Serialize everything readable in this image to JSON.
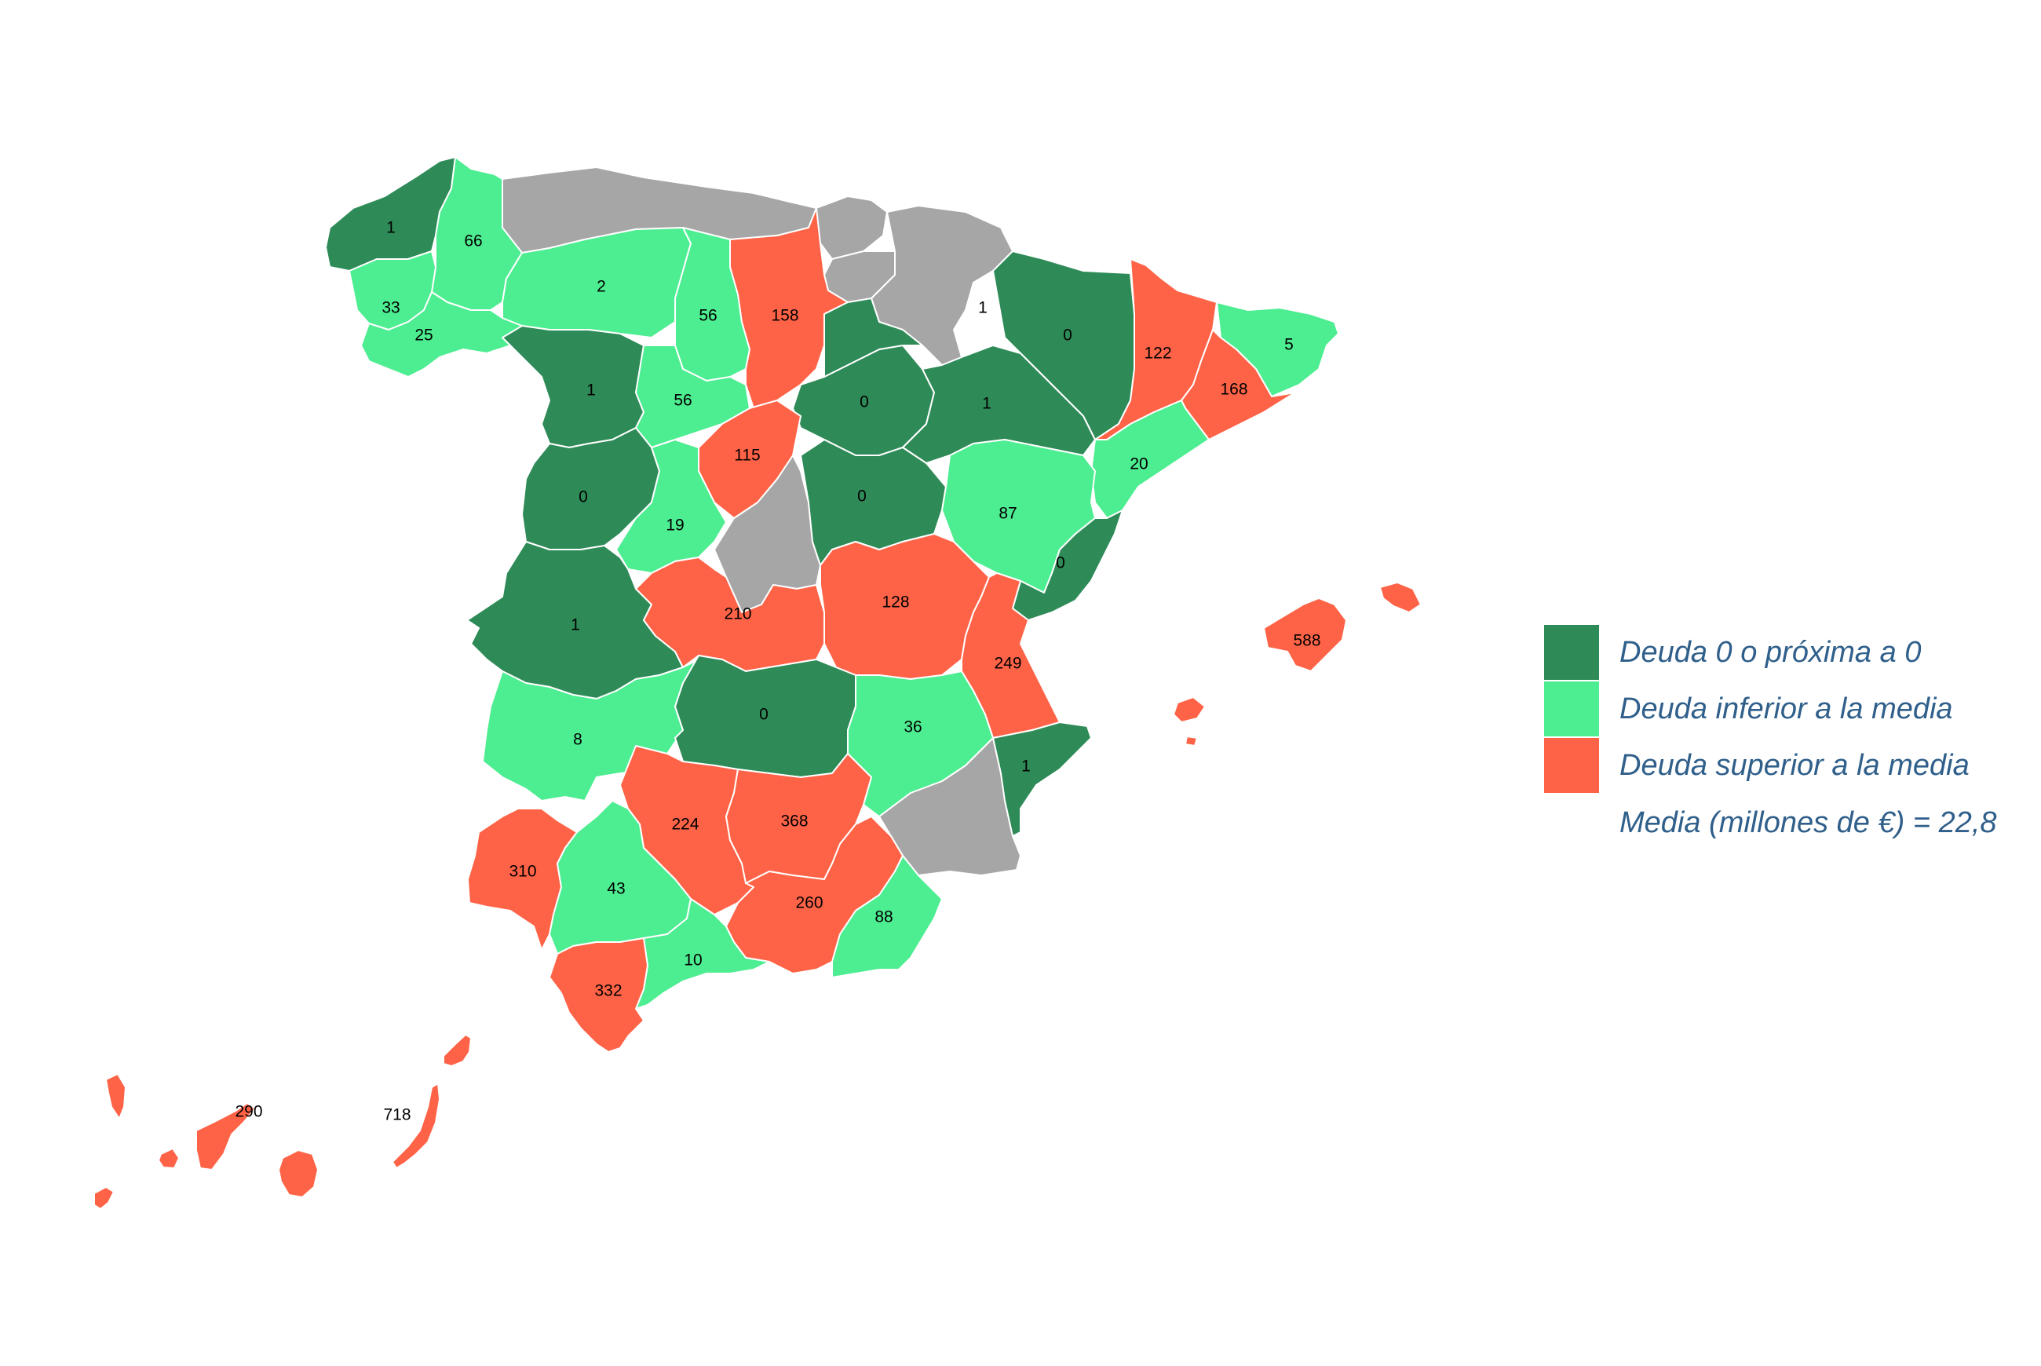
{
  "colors": {
    "zero": "#2e8b57",
    "below": "#4ded91",
    "above": "#ff6347",
    "nodata": "#a6a6a6",
    "legend_text": "#2f5f8a"
  },
  "legend": {
    "items": [
      {
        "category": "zero",
        "label": "Deuda 0 o próxima a 0"
      },
      {
        "category": "below",
        "label": "Deuda inferior a la media"
      },
      {
        "category": "above",
        "label": "Deuda superior a la media"
      }
    ],
    "note": "Media (millones de €) = 22,8"
  },
  "provinces": [
    {
      "id": "a-coruna",
      "value": "1",
      "category": "zero"
    },
    {
      "id": "lugo",
      "value": "66",
      "category": "below"
    },
    {
      "id": "pontevedra",
      "value": "33",
      "category": "below"
    },
    {
      "id": "ourense",
      "value": "25",
      "category": "below"
    },
    {
      "id": "leon",
      "value": "2",
      "category": "below"
    },
    {
      "id": "palencia",
      "value": "56",
      "category": "below"
    },
    {
      "id": "burgos",
      "value": "158",
      "category": "above"
    },
    {
      "id": "zamora",
      "value": "1",
      "category": "zero"
    },
    {
      "id": "valladolid",
      "value": "56",
      "category": "below"
    },
    {
      "id": "soria",
      "value": "0",
      "category": "zero"
    },
    {
      "id": "la-rioja",
      "value": "1",
      "category": "zero"
    },
    {
      "id": "huesca",
      "value": "0",
      "category": "zero"
    },
    {
      "id": "zaragoza",
      "value": "1",
      "category": "zero"
    },
    {
      "id": "lleida",
      "value": "122",
      "category": "above"
    },
    {
      "id": "girona",
      "value": "5",
      "category": "below"
    },
    {
      "id": "barcelona",
      "value": "168",
      "category": "above"
    },
    {
      "id": "tarragona",
      "value": "20",
      "category": "below"
    },
    {
      "id": "segovia",
      "value": "115",
      "category": "above"
    },
    {
      "id": "salamanca",
      "value": "0",
      "category": "zero"
    },
    {
      "id": "avila",
      "value": "19",
      "category": "below"
    },
    {
      "id": "guadalajara",
      "value": "0",
      "category": "zero"
    },
    {
      "id": "teruel",
      "value": "87",
      "category": "below"
    },
    {
      "id": "castellon",
      "value": "0",
      "category": "zero"
    },
    {
      "id": "caceres",
      "value": "1",
      "category": "zero"
    },
    {
      "id": "toledo",
      "value": "210",
      "category": "above"
    },
    {
      "id": "cuenca",
      "value": "128",
      "category": "above"
    },
    {
      "id": "valencia",
      "value": "249",
      "category": "above"
    },
    {
      "id": "badajoz",
      "value": "8",
      "category": "below"
    },
    {
      "id": "ciudad-real",
      "value": "0",
      "category": "zero"
    },
    {
      "id": "albacete",
      "value": "36",
      "category": "below"
    },
    {
      "id": "alicante",
      "value": "1",
      "category": "zero"
    },
    {
      "id": "cordoba",
      "value": "224",
      "category": "above"
    },
    {
      "id": "jaen",
      "value": "368",
      "category": "above"
    },
    {
      "id": "huelva",
      "value": "310",
      "category": "above"
    },
    {
      "id": "sevilla",
      "value": "43",
      "category": "below"
    },
    {
      "id": "granada",
      "value": "260",
      "category": "above"
    },
    {
      "id": "almeria",
      "value": "88",
      "category": "below"
    },
    {
      "id": "malaga",
      "value": "10",
      "category": "below"
    },
    {
      "id": "cadiz",
      "value": "332",
      "category": "above"
    },
    {
      "id": "illes-balears",
      "value": "588",
      "category": "above"
    },
    {
      "id": "santa-cruz-de-tenerife",
      "value": "290",
      "category": "above"
    },
    {
      "id": "las-palmas",
      "value": "718",
      "category": "above"
    }
  ]
}
